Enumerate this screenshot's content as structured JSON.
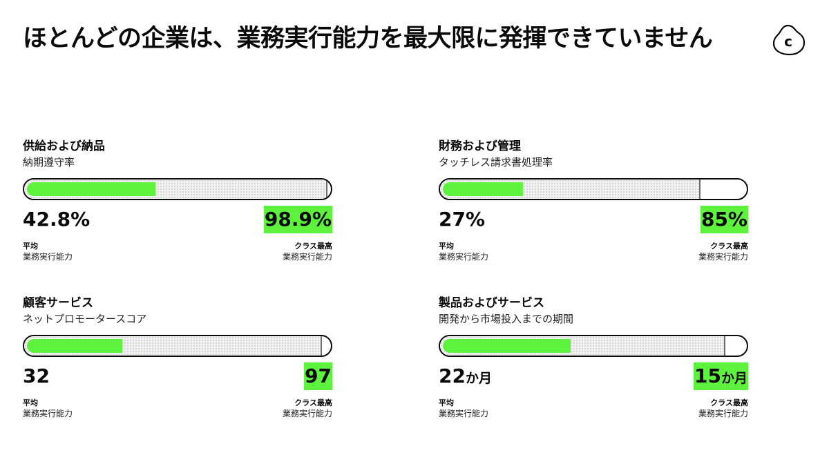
{
  "title": "ほとんどの企業は、業務実行能力を最大限に発揮できていません",
  "logo": {
    "letter": "c"
  },
  "colors": {
    "accent": "#5cf23d",
    "text": "#0a0a0a",
    "best_fill": "#f1f1f1"
  },
  "labels": {
    "average": "平均",
    "best": "クラス最高",
    "sub": "業務実行能力"
  },
  "chart_data": [
    {
      "type": "bar",
      "title": "供給および納品",
      "metric": "納期遵守率",
      "average": {
        "value": 42.8,
        "display": "42.8%",
        "unit": ""
      },
      "best": {
        "value": 98.9,
        "display": "98.9%",
        "unit": ""
      },
      "scale_max": 100,
      "higher_is_better": true
    },
    {
      "type": "bar",
      "title": "財務および管理",
      "metric": "タッチレス請求書処理率",
      "average": {
        "value": 27,
        "display": "27%",
        "unit": ""
      },
      "best": {
        "value": 85,
        "display": "85%",
        "unit": ""
      },
      "scale_max": 100,
      "higher_is_better": true
    },
    {
      "type": "bar",
      "title": "顧客サービス",
      "metric": "ネットプロモータースコア",
      "average": {
        "value": 32,
        "display": "32",
        "unit": ""
      },
      "best": {
        "value": 97,
        "display": "97",
        "unit": ""
      },
      "scale_max": 100,
      "higher_is_better": true
    },
    {
      "type": "bar",
      "title": "製品およびサービス",
      "metric": "開発から市場投入までの期間",
      "average": {
        "value": 22,
        "display": "22",
        "unit": "か月"
      },
      "best": {
        "value": 15,
        "display": "15",
        "unit": "か月"
      },
      "higher_is_better": false,
      "avg_fraction": 0.425,
      "best_fraction": 0.93
    }
  ]
}
